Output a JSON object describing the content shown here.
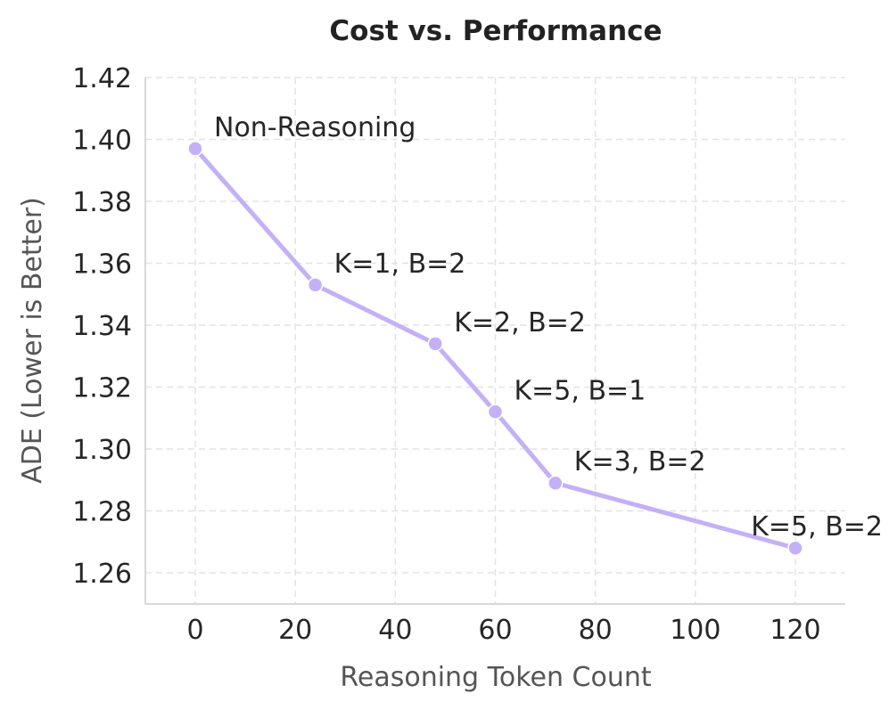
{
  "chart_data": {
    "type": "line",
    "title": "Cost vs. Performance",
    "xlabel": "Reasoning Token Count",
    "ylabel": "ADE (Lower is Better)",
    "xlim": [
      -10,
      130
    ],
    "ylim": [
      1.25,
      1.42
    ],
    "xticks": [
      0,
      20,
      40,
      60,
      80,
      100,
      120
    ],
    "yticks": [
      1.26,
      1.28,
      1.3,
      1.32,
      1.34,
      1.36,
      1.38,
      1.4,
      1.42
    ],
    "grid": true,
    "color": "#c4b0f7",
    "series": [
      {
        "name": "ADE",
        "points": [
          {
            "x": 0,
            "y": 1.397,
            "label": "Non-Reasoning"
          },
          {
            "x": 24,
            "y": 1.353,
            "label": "K=1, B=2"
          },
          {
            "x": 48,
            "y": 1.334,
            "label": "K=2, B=2"
          },
          {
            "x": 60,
            "y": 1.312,
            "label": "K=5, B=1"
          },
          {
            "x": 72,
            "y": 1.289,
            "label": "K=3, B=2"
          },
          {
            "x": 120,
            "y": 1.268,
            "label": "K=5, B=2"
          }
        ]
      }
    ]
  }
}
